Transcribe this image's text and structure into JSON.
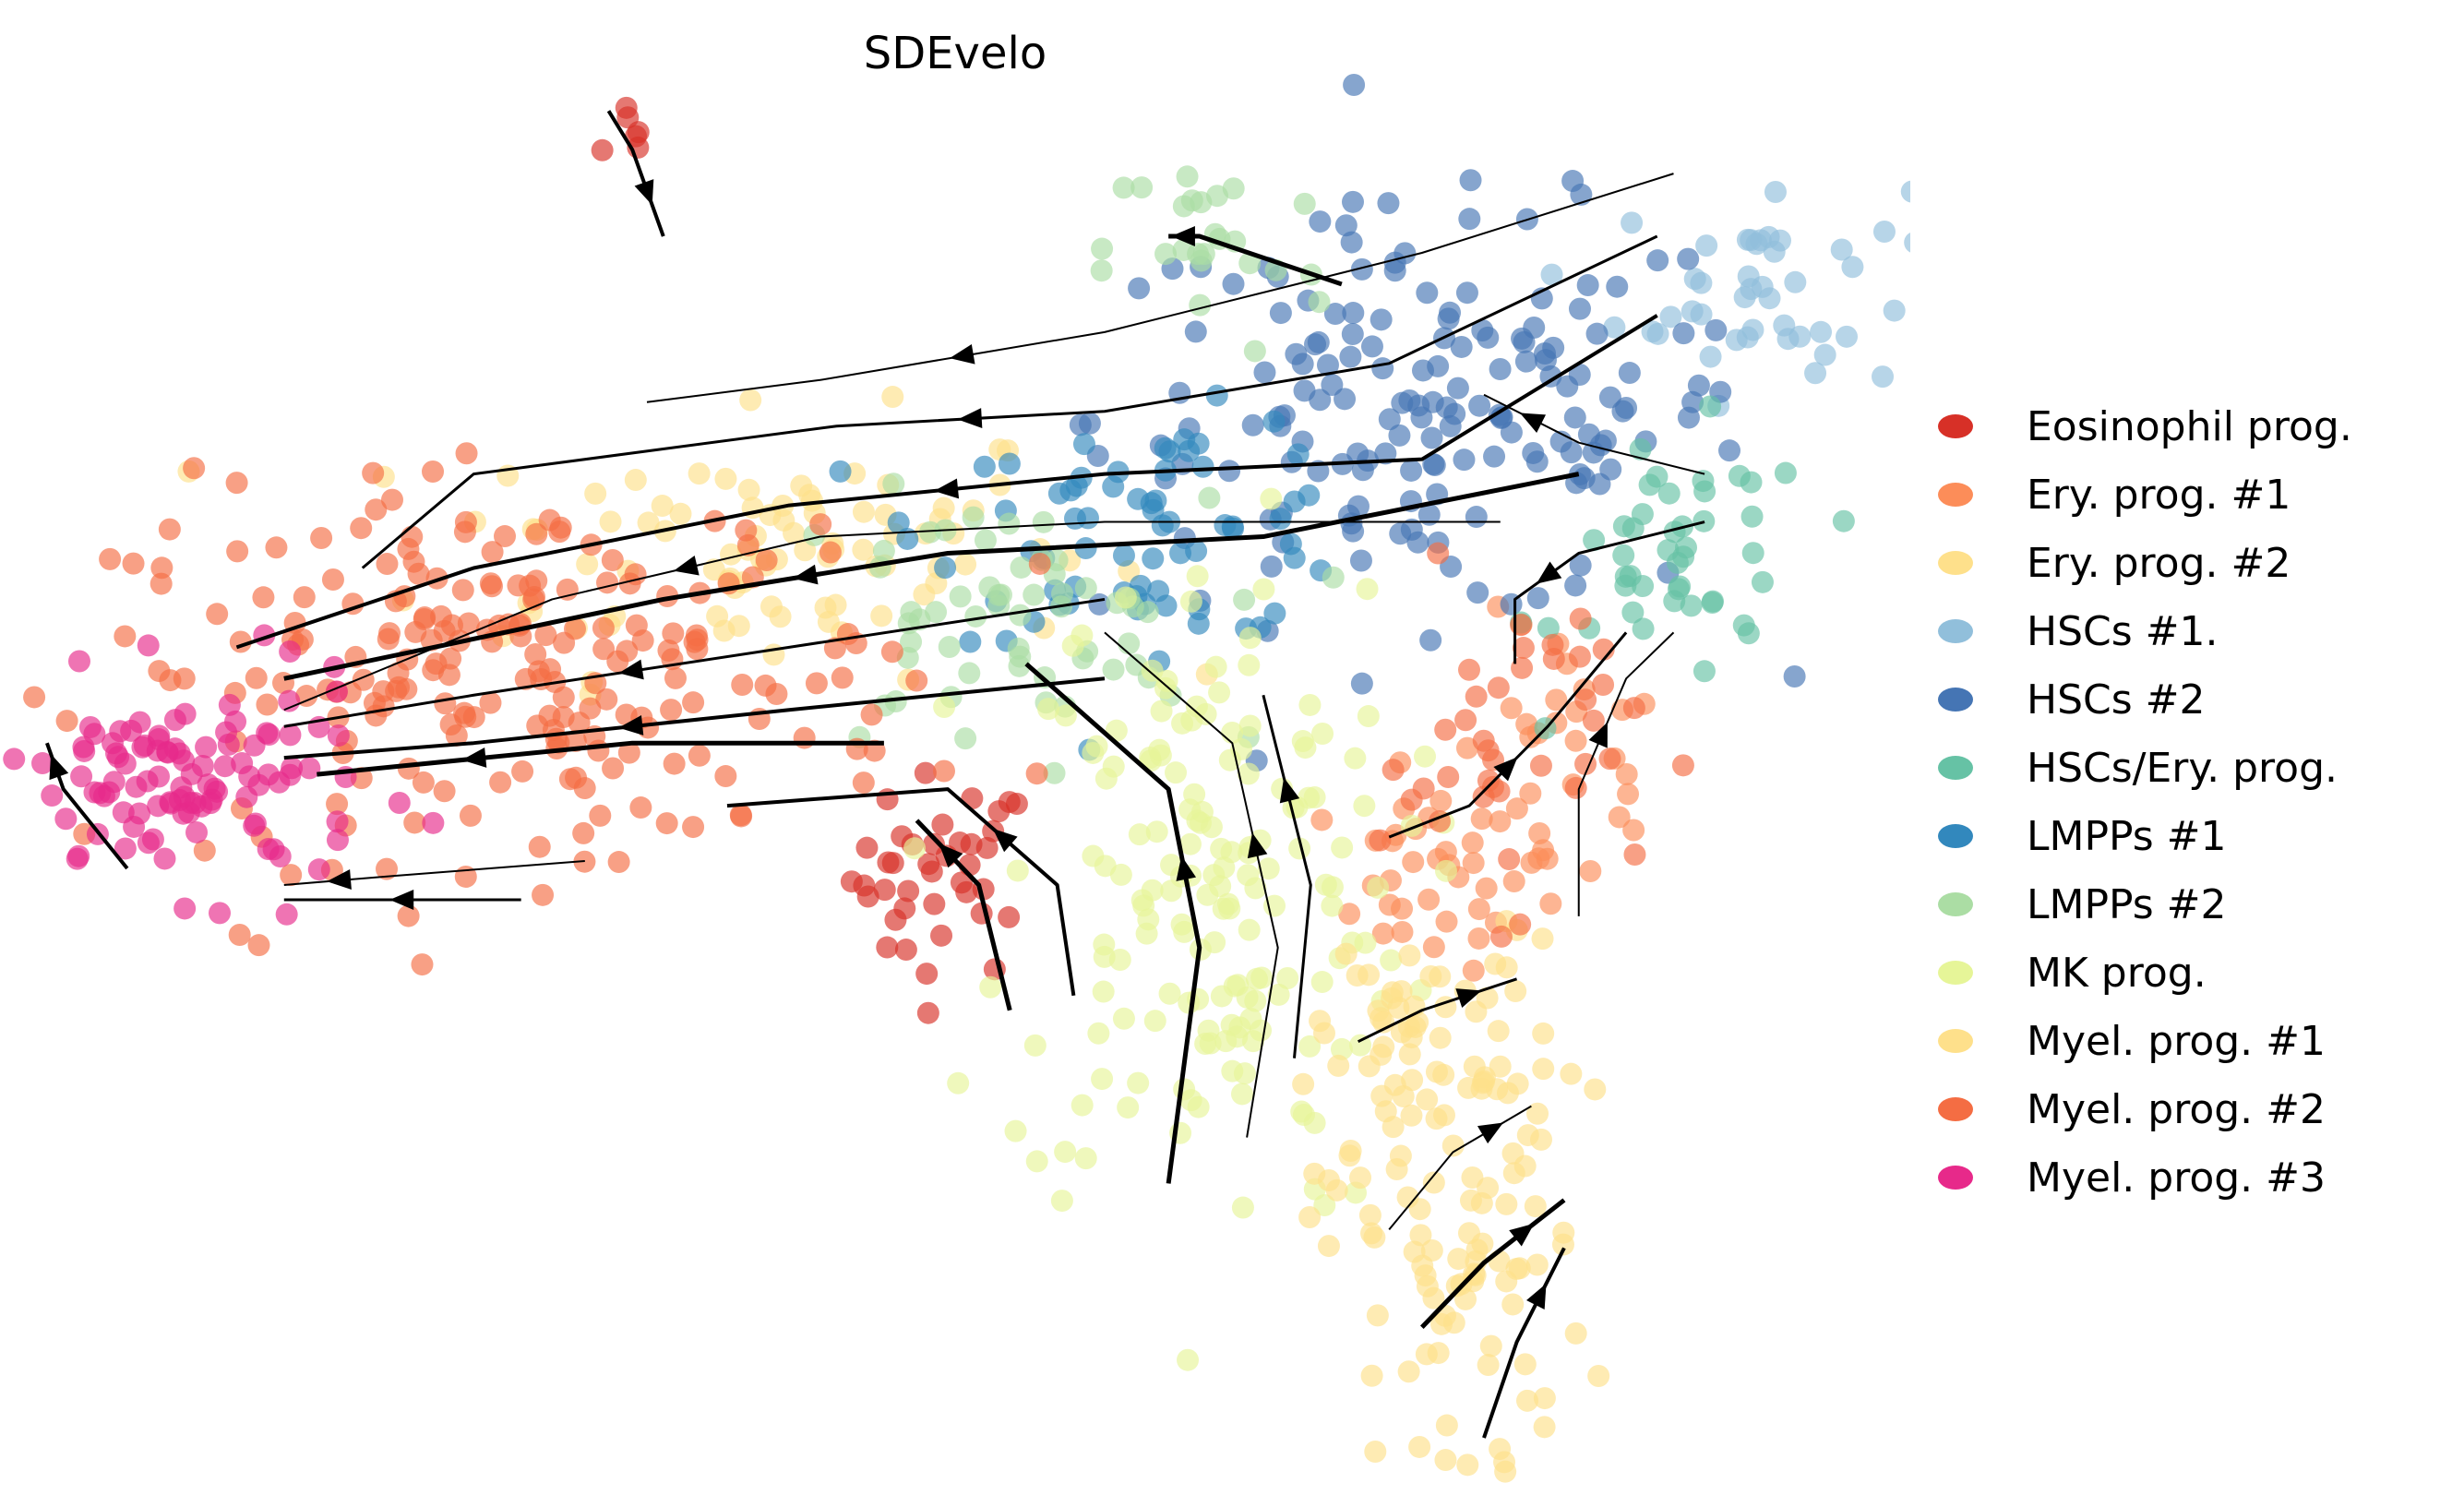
{
  "chart_data": {
    "type": "scatter",
    "title": "SDEvelo",
    "xlabel": "",
    "ylabel": "",
    "xlim": [
      -2,
      102
    ],
    "ylim": [
      -2,
      77
    ],
    "grid": false,
    "axes_visible": false,
    "legend_position": "right",
    "clusters": [
      {
        "name": "Eosinophil prog.",
        "color": "#d73027",
        "blobs": [
          {
            "center": [
              32.5,
              72.6
            ],
            "spread": [
              0.8,
              1.2
            ],
            "n": 6
          },
          {
            "center": [
              49.5,
              32.5
            ],
            "spread": [
              2.5,
              2.8
            ],
            "n": 40
          }
        ]
      },
      {
        "name": "Ery. prog. #1",
        "color": "#fc8d59",
        "blobs": [
          {
            "center": [
              76.5,
              32.5
            ],
            "spread": [
              3.0,
              2.5
            ],
            "n": 35
          },
          {
            "center": [
              83.5,
              38.5
            ],
            "spread": [
              3.0,
              4.0
            ],
            "n": 30
          }
        ]
      },
      {
        "name": "Ery. prog. #2",
        "color": "#fee08b",
        "blobs": [
          {
            "center": [
              39.5,
              50.5
            ],
            "spread": [
              9.0,
              3.5
            ],
            "n": 90
          }
        ]
      },
      {
        "name": "HSCs #1.",
        "color": "#91bfdb",
        "blobs": [
          {
            "center": [
              94.5,
              64.5
            ],
            "spread": [
              4.0,
              3.0
            ],
            "n": 45
          }
        ]
      },
      {
        "name": "HSCs #2",
        "color": "#4575b4",
        "blobs": [
          {
            "center": [
              76.0,
              57.5
            ],
            "spread": [
              9.0,
              5.5
            ],
            "n": 170
          }
        ]
      },
      {
        "name": "HSCs/Ery. prog.",
        "color": "#66c2a5",
        "blobs": [
          {
            "center": [
              90.5,
              49.5
            ],
            "spread": [
              3.5,
              3.5
            ],
            "n": 45
          }
        ]
      },
      {
        "name": "LMPPs #1",
        "color": "#3288bd",
        "blobs": [
          {
            "center": [
              61.0,
              51.5
            ],
            "spread": [
              6.0,
              3.0
            ],
            "n": 70
          }
        ]
      },
      {
        "name": "LMPPs #2",
        "color": "#abdda4",
        "blobs": [
          {
            "center": [
              52.0,
              46.0
            ],
            "spread": [
              6.0,
              3.5
            ],
            "n": 60
          },
          {
            "center": [
              64.5,
              66.5
            ],
            "spread": [
              3.0,
              3.0
            ],
            "n": 25
          }
        ]
      },
      {
        "name": "MK prog.",
        "color": "#e6f598",
        "blobs": [
          {
            "center": [
              64.0,
              32.0
            ],
            "spread": [
              5.5,
              9.0
            ],
            "n": 170
          }
        ]
      },
      {
        "name": "Myel. prog. #1",
        "color": "#fee08b",
        "blobs": [
          {
            "center": [
              77.5,
              13.0
            ],
            "spread": [
              3.5,
              8.0
            ],
            "n": 110
          },
          {
            "center": [
              76.0,
              24.5
            ],
            "spread": [
              3.0,
              2.5
            ],
            "n": 35
          }
        ]
      },
      {
        "name": "Myel. prog. #2",
        "color": "#f46d43",
        "blobs": [
          {
            "center": [
              26.0,
              43.5
            ],
            "spread": [
              11.0,
              5.0
            ],
            "n": 230
          },
          {
            "center": [
              80.5,
              40.0
            ],
            "spread": [
              3.5,
              4.5
            ],
            "n": 40
          }
        ]
      },
      {
        "name": "Myel. prog. #3",
        "color": "#e7298a",
        "blobs": [
          {
            "center": [
              8.0,
              37.5
            ],
            "spread": [
              5.0,
              2.8
            ],
            "n": 110
          }
        ]
      }
    ],
    "streamlines": [
      [
        [
          89.6,
          70.7
        ],
        [
          75.8,
          66.4
        ],
        [
          58.4,
          62.1
        ],
        [
          42.8,
          59.5
        ],
        [
          33.3,
          58.3
        ]
      ],
      [
        [
          88.7,
          67.3
        ],
        [
          74,
          60.4
        ],
        [
          58.4,
          57.8
        ],
        [
          43.7,
          57
        ],
        [
          23.8,
          54.4
        ],
        [
          17.7,
          49.3
        ]
      ],
      [
        [
          88.7,
          63
        ],
        [
          75.8,
          55.2
        ],
        [
          58.4,
          54.4
        ],
        [
          41.1,
          52.7
        ],
        [
          23.8,
          49.3
        ],
        [
          10.8,
          45
        ]
      ],
      [
        [
          84.4,
          54.4
        ],
        [
          67.1,
          51
        ],
        [
          49.8,
          50.1
        ],
        [
          34.2,
          47.6
        ],
        [
          13.4,
          43.3
        ]
      ],
      [
        [
          80.1,
          51.8
        ],
        [
          58.4,
          51.8
        ],
        [
          42.8,
          51
        ],
        [
          28.1,
          47.6
        ],
        [
          13.4,
          41.6
        ]
      ],
      [
        [
          58.4,
          47.6
        ],
        [
          41.1,
          45
        ],
        [
          23.8,
          42.4
        ],
        [
          13.4,
          40.7
        ]
      ],
      [
        [
          58.4,
          43.3
        ],
        [
          41.1,
          41.6
        ],
        [
          23.8,
          39.8
        ],
        [
          13.4,
          39
        ]
      ],
      [
        [
          46.3,
          39.8
        ],
        [
          32.5,
          39.8
        ],
        [
          15.2,
          38.1
        ]
      ],
      [
        [
          29.9,
          33.4
        ],
        [
          19.5,
          32.6
        ],
        [
          13.4,
          32.1
        ]
      ],
      [
        [
          26.4,
          31.3
        ],
        [
          13.4,
          31.3
        ]
      ],
      [
        [
          4.8,
          33
        ],
        [
          1.3,
          37.3
        ],
        [
          0.4,
          39.8
        ]
      ],
      [
        [
          61.9,
          15.9
        ],
        [
          63.6,
          28.7
        ],
        [
          61.9,
          37.3
        ],
        [
          54.1,
          44.1
        ]
      ],
      [
        [
          66.2,
          18.4
        ],
        [
          67.9,
          28.7
        ],
        [
          65.4,
          39.8
        ],
        [
          58.4,
          45.8
        ]
      ],
      [
        [
          68.8,
          22.7
        ],
        [
          69.7,
          32.1
        ],
        [
          67.1,
          42.4
        ]
      ],
      [
        [
          56.7,
          26.1
        ],
        [
          55.8,
          32.1
        ],
        [
          49.8,
          37.3
        ],
        [
          37.7,
          36.4
        ]
      ],
      [
        [
          53.2,
          25.3
        ],
        [
          51.5,
          32.1
        ],
        [
          48.1,
          35.6
        ]
      ],
      [
        [
          84.4,
          30.4
        ],
        [
          84.4,
          37.3
        ],
        [
          87,
          43.3
        ],
        [
          89.6,
          45.8
        ]
      ],
      [
        [
          74,
          34.7
        ],
        [
          78.4,
          36.4
        ],
        [
          82.7,
          40.7
        ],
        [
          87,
          45.8
        ]
      ],
      [
        [
          79.2,
          2.1
        ],
        [
          81,
          7.3
        ],
        [
          83.6,
          12.4
        ]
      ],
      [
        [
          75.8,
          8.1
        ],
        [
          79.2,
          11.6
        ],
        [
          83.6,
          15
        ]
      ],
      [
        [
          74,
          13.4
        ],
        [
          77.5,
          17.6
        ],
        [
          81.8,
          20.1
        ]
      ],
      [
        [
          72.3,
          23.6
        ],
        [
          75.8,
          25.3
        ],
        [
          81,
          27
        ]
      ],
      [
        [
          31.2,
          74.1
        ],
        [
          32.5,
          72
        ],
        [
          34.2,
          67.3
        ]
      ],
      [
        [
          71.4,
          64.7
        ],
        [
          63.6,
          67.3
        ],
        [
          61.9,
          67.3
        ]
      ],
      [
        [
          91.3,
          54.4
        ],
        [
          84.4,
          56.1
        ],
        [
          79.2,
          58.7
        ]
      ],
      [
        [
          91.3,
          51.8
        ],
        [
          84.4,
          50.1
        ],
        [
          80.9,
          47.6
        ],
        [
          80.9,
          44.1
        ]
      ]
    ]
  }
}
